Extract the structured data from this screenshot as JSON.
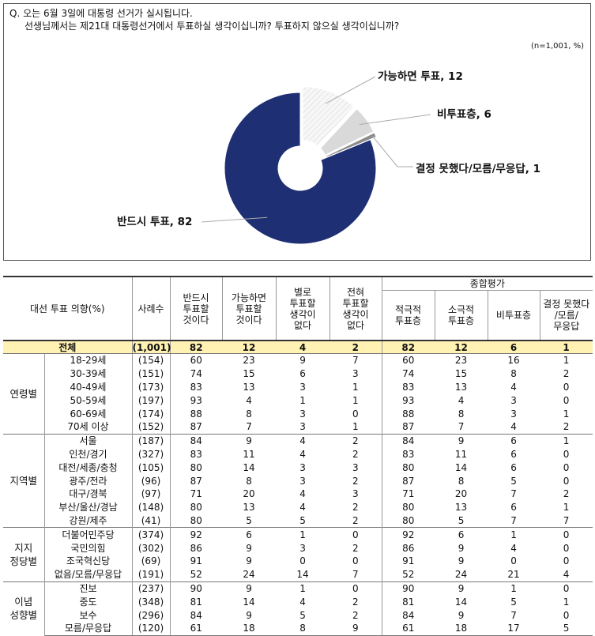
{
  "question": {
    "line1": "Q. 오는 6월 3일에 대통령 선거가 실시됩니다.",
    "line2": "선생님께서는 제21대 대통령선거에서 투표하실 생각이십니까? 투표하지 않으실 생각이십니까?",
    "sample_note": "(n=1,001,  %)"
  },
  "chart_data": {
    "type": "pie",
    "donut": true,
    "slices": [
      {
        "label": "반드시 투표, 82",
        "name": "반드시 투표",
        "value": 82,
        "color": "#1e2f73",
        "exploded": false
      },
      {
        "label": "가능하면 투표, 12",
        "name": "가능하면 투표",
        "value": 12,
        "color": "#f4f4f4",
        "pattern": "diagonal-hatch",
        "exploded": true
      },
      {
        "label": "비투표층, 6",
        "name": "비투표층",
        "value": 6,
        "color": "#d9d9d9",
        "exploded": true
      },
      {
        "label": "결정 못했다/모름/무응답,  1",
        "name": "결정 못했다/모름/무응답",
        "value": 1,
        "color": "#8c8c8c",
        "exploded": true
      }
    ]
  },
  "table": {
    "corner_header": "대선 투표 의향(%)",
    "n_header": "사례수",
    "col_headers": [
      "반드시\n투표할\n것이다",
      "가능하면\n투표할\n것이다",
      "별로\n투표할\n생각이\n없다",
      "전혀\n투표할\n생각이\n없다"
    ],
    "group_header": "종합평가",
    "sub_headers": [
      "적극적\n투표층",
      "소극적\n투표층",
      "비투표층",
      "결정 못했다\n/모름/\n무응답"
    ],
    "total": {
      "label": "전체",
      "n": "(1,001)",
      "values": [
        "82",
        "12",
        "4",
        "2",
        "82",
        "12",
        "6",
        "1"
      ]
    },
    "groups": [
      {
        "label": "연령별",
        "rows": [
          {
            "label": "18-29세",
            "n": "(154)",
            "values": [
              "60",
              "23",
              "9",
              "7",
              "60",
              "23",
              "16",
              "1"
            ]
          },
          {
            "label": "30-39세",
            "n": "(151)",
            "values": [
              "74",
              "15",
              "6",
              "3",
              "74",
              "15",
              "8",
              "2"
            ]
          },
          {
            "label": "40-49세",
            "n": "(173)",
            "values": [
              "83",
              "13",
              "3",
              "1",
              "83",
              "13",
              "4",
              "0"
            ]
          },
          {
            "label": "50-59세",
            "n": "(197)",
            "values": [
              "93",
              "4",
              "1",
              "1",
              "93",
              "4",
              "3",
              "0"
            ]
          },
          {
            "label": "60-69세",
            "n": "(174)",
            "values": [
              "88",
              "8",
              "3",
              "0",
              "88",
              "8",
              "3",
              "1"
            ]
          },
          {
            "label": "70세 이상",
            "n": "(152)",
            "values": [
              "87",
              "7",
              "3",
              "1",
              "87",
              "7",
              "4",
              "2"
            ]
          }
        ]
      },
      {
        "label": "지역별",
        "rows": [
          {
            "label": "서울",
            "n": "(187)",
            "values": [
              "84",
              "9",
              "4",
              "2",
              "84",
              "9",
              "6",
              "1"
            ]
          },
          {
            "label": "인천/경기",
            "n": "(327)",
            "values": [
              "83",
              "11",
              "4",
              "2",
              "83",
              "11",
              "6",
              "0"
            ]
          },
          {
            "label": "대전/세종/충청",
            "n": "(105)",
            "values": [
              "80",
              "14",
              "3",
              "3",
              "80",
              "14",
              "6",
              "0"
            ]
          },
          {
            "label": "광주/전라",
            "n": "(96)",
            "values": [
              "87",
              "8",
              "3",
              "2",
              "87",
              "8",
              "5",
              "0"
            ]
          },
          {
            "label": "대구/경북",
            "n": "(97)",
            "values": [
              "71",
              "20",
              "4",
              "3",
              "71",
              "20",
              "7",
              "2"
            ]
          },
          {
            "label": "부산/울산/경남",
            "n": "(148)",
            "values": [
              "80",
              "13",
              "4",
              "2",
              "80",
              "13",
              "6",
              "1"
            ]
          },
          {
            "label": "강원/제주",
            "n": "(41)",
            "values": [
              "80",
              "5",
              "5",
              "2",
              "80",
              "5",
              "7",
              "7"
            ]
          }
        ]
      },
      {
        "label": "지지\n정당별",
        "rows": [
          {
            "label": "더불어민주당",
            "n": "(374)",
            "values": [
              "92",
              "6",
              "1",
              "0",
              "92",
              "6",
              "1",
              "0"
            ]
          },
          {
            "label": "국민의힘",
            "n": "(302)",
            "values": [
              "86",
              "9",
              "3",
              "2",
              "86",
              "9",
              "4",
              "0"
            ]
          },
          {
            "label": "조국혁신당",
            "n": "(69)",
            "values": [
              "91",
              "9",
              "0",
              "0",
              "91",
              "9",
              "0",
              "0"
            ]
          },
          {
            "label": "없음/모름/무응답",
            "n": "(191)",
            "values": [
              "52",
              "24",
              "14",
              "7",
              "52",
              "24",
              "21",
              "4"
            ]
          }
        ]
      },
      {
        "label": "이념\n성향별",
        "rows": [
          {
            "label": "진보",
            "n": "(237)",
            "values": [
              "90",
              "9",
              "1",
              "0",
              "90",
              "9",
              "1",
              "0"
            ]
          },
          {
            "label": "중도",
            "n": "(348)",
            "values": [
              "81",
              "14",
              "4",
              "2",
              "81",
              "14",
              "5",
              "1"
            ]
          },
          {
            "label": "보수",
            "n": "(296)",
            "values": [
              "84",
              "9",
              "5",
              "2",
              "84",
              "9",
              "7",
              "0"
            ]
          },
          {
            "label": "모름/무응답",
            "n": "(120)",
            "values": [
              "61",
              "18",
              "8",
              "9",
              "61",
              "18",
              "17",
              "5"
            ]
          }
        ]
      }
    ]
  }
}
